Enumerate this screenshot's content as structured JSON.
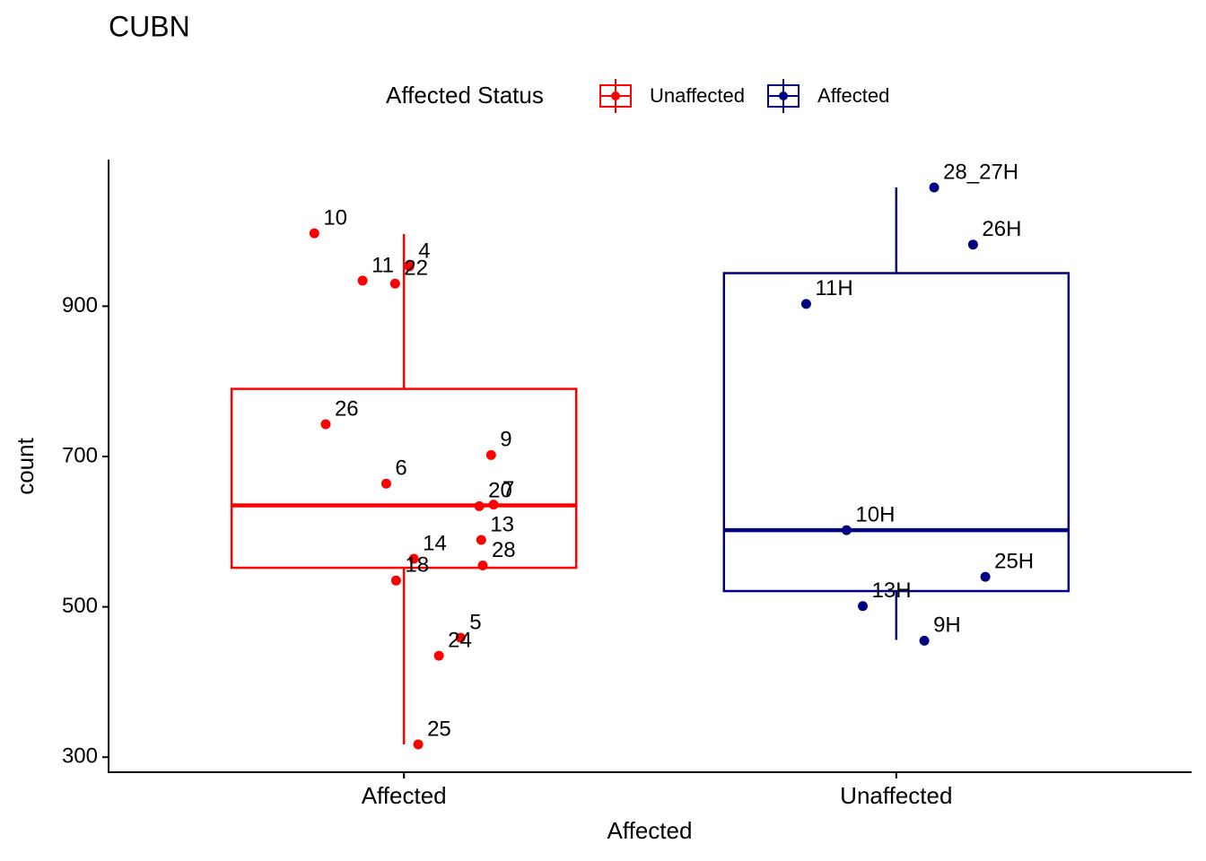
{
  "chart_data": {
    "type": "box",
    "title": "CUBN",
    "legend_title": "Affected Status",
    "xlabel": "Affected",
    "ylabel": "count",
    "categories": [
      "Affected",
      "Unaffected"
    ],
    "xlim": [
      0.4,
      2.6
    ],
    "ylim": [
      280,
      1095
    ],
    "yticks": [
      300,
      500,
      700,
      900
    ],
    "series": [
      {
        "name": "Unaffected",
        "color": "#ff0000",
        "whisker_low": 317,
        "q1": 552,
        "median": 635,
        "q3": 790,
        "whisker_high": 996,
        "labels": [
          "10",
          "11",
          "4",
          "22",
          "26",
          "9",
          "6",
          "20",
          "7",
          "13",
          "14",
          "28",
          "18",
          "5",
          "24",
          "25"
        ],
        "x": [
          0.818,
          0.916,
          1.011,
          0.982,
          0.841,
          1.177,
          0.964,
          1.153,
          1.182,
          1.157,
          1.02,
          1.16,
          0.984,
          1.115,
          1.071,
          1.029
        ],
        "values": [
          997,
          934,
          953,
          930,
          743,
          702,
          664,
          634,
          636,
          589,
          564,
          555,
          535,
          459,
          435,
          317
        ]
      },
      {
        "name": "Affected",
        "color": "#000080",
        "whisker_low": 456,
        "q1": 521,
        "median": 602,
        "q3": 944,
        "whisker_high": 1058,
        "labels": [
          "28_27H",
          "26H",
          "11H",
          "10H",
          "25H",
          "13H",
          "9H"
        ],
        "x": [
          2.077,
          2.156,
          1.817,
          1.899,
          2.181,
          1.932,
          2.057
        ],
        "values": [
          1058,
          982,
          903,
          602,
          540,
          501,
          455
        ]
      }
    ]
  }
}
